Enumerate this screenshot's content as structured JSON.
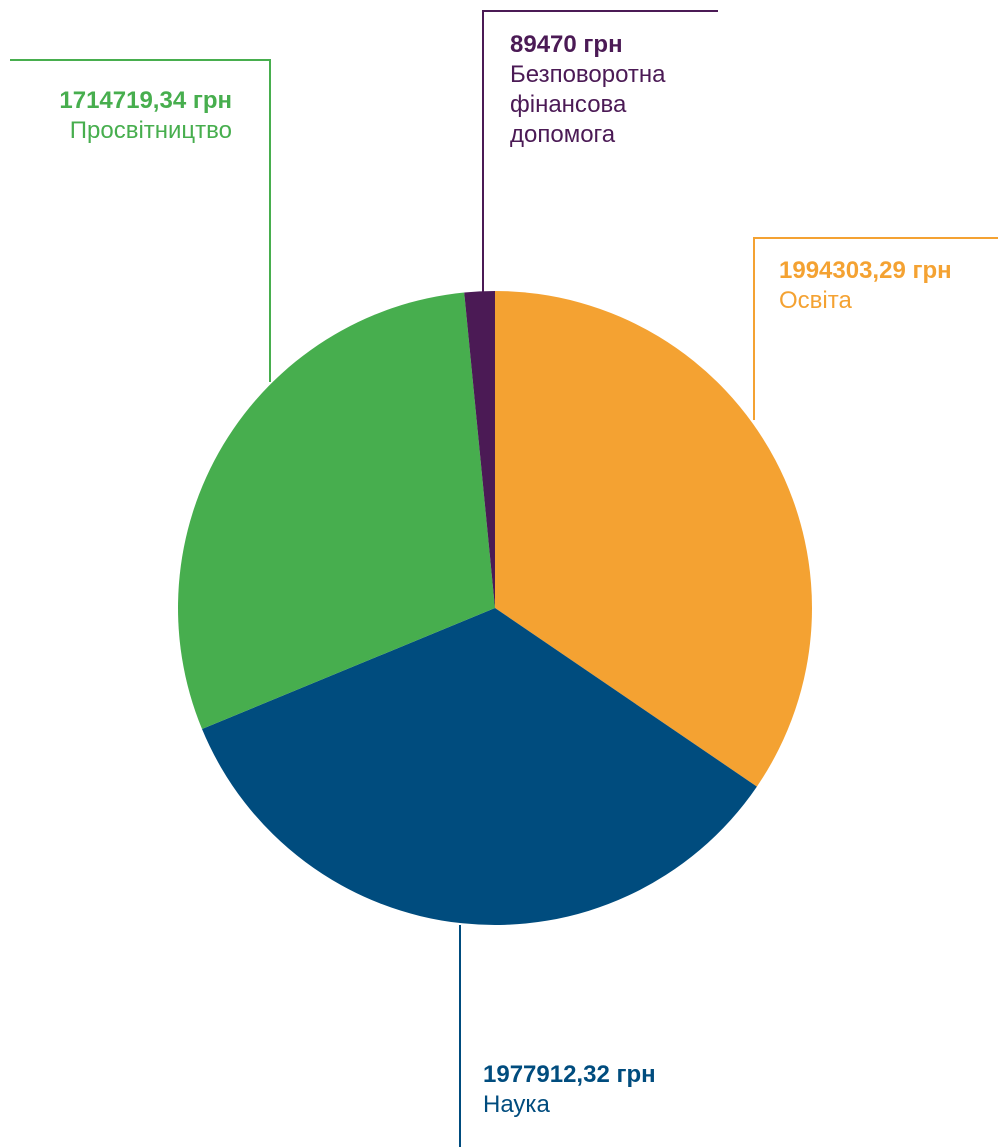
{
  "chart_data": {
    "type": "pie",
    "currency": "грн",
    "slices": [
      {
        "category": "Освіта",
        "value": 1994303.29,
        "amount_label": "1994303,29 грн",
        "color": "#F4A232"
      },
      {
        "category": "Наука",
        "value": 1977912.32,
        "amount_label": "1977912,32 грн",
        "color": "#004C7E"
      },
      {
        "category": "Просвітництво",
        "value": 1714719.34,
        "amount_label": "1714719,34 грн",
        "color": "#47AE4E"
      },
      {
        "category_lines": [
          "Безповоротна",
          "фінансова",
          "допомога"
        ],
        "category": "Безповоротна фінансова допомога",
        "value": 89470,
        "amount_label": "89470 грн",
        "color": "#4B1A55"
      }
    ],
    "start_angle": "12 o'clock",
    "direction": "clockwise"
  }
}
